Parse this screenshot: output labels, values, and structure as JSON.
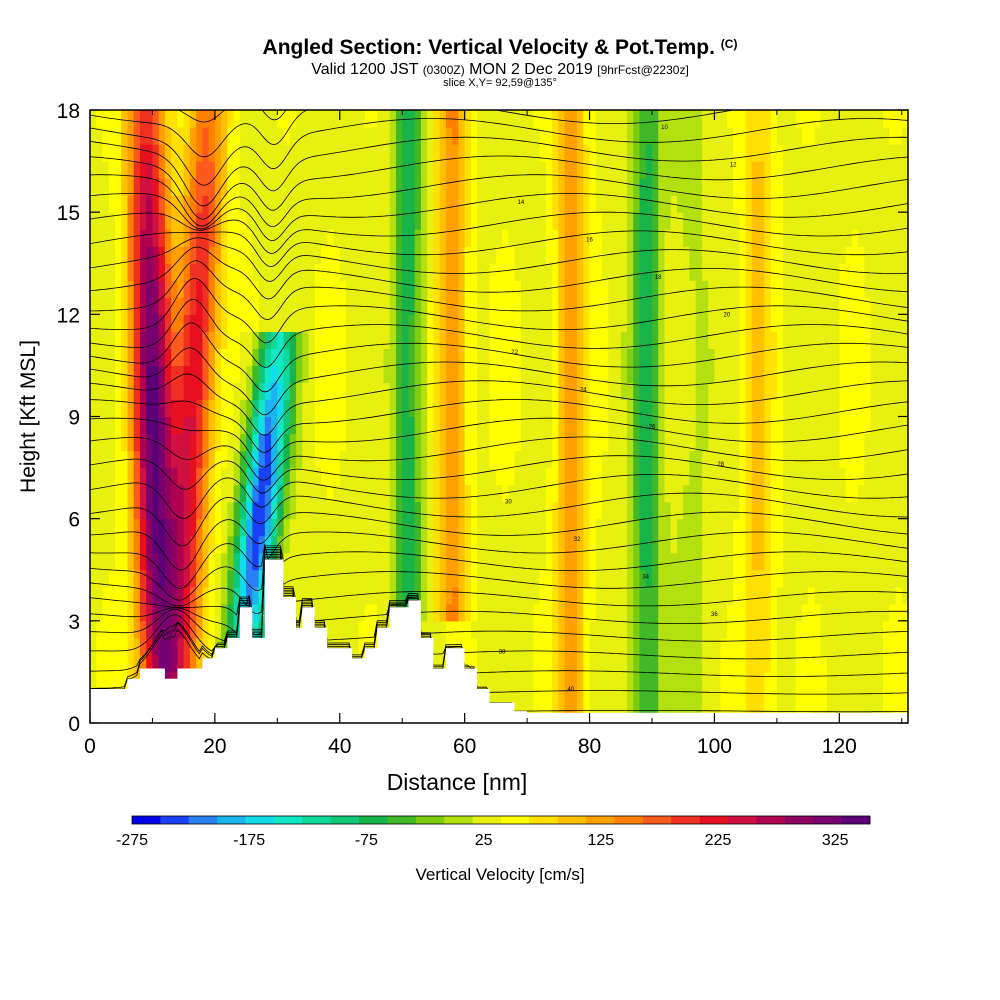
{
  "header": {
    "title": "Angled Section: Vertical Velocity & Pot.Temp.",
    "copyright": "(C)",
    "valid_a": "Valid 1200 JST",
    "valid_z": "(0300Z)",
    "valid_b": "MON 2 Dec 2019",
    "forecast": "[9hrFcst@2230z]",
    "slice": "slice X,Y= 92,59@135°"
  },
  "colorbar": {
    "label": "Vertical Velocity [cm/s]",
    "ticks": [
      "-275",
      "-175",
      "-75",
      "25",
      "125",
      "225",
      "325"
    ],
    "colors": [
      "#0000e8",
      "#1a40f5",
      "#2a80f2",
      "#1ab4ee",
      "#10dcea",
      "#10e8c8",
      "#10d89a",
      "#10c878",
      "#18b44a",
      "#40b828",
      "#7ccc10",
      "#b4e010",
      "#e8f010",
      "#ffff00",
      "#ffe000",
      "#ffc000",
      "#ffa000",
      "#ff8000",
      "#ff5a1e",
      "#f03020",
      "#e81020",
      "#d01040",
      "#b00050",
      "#900060",
      "#780070",
      "#5c0078"
    ]
  },
  "chart_data": {
    "type": "heatmap",
    "xlabel": "Distance [nm]",
    "ylabel": "Height [Kft MSL]",
    "xlim": [
      0,
      131
    ],
    "ylim": [
      0,
      18
    ],
    "xticks": [
      "0",
      "20",
      "40",
      "60",
      "80",
      "100",
      "120"
    ],
    "yticks": [
      "0",
      "3",
      "6",
      "9",
      "12",
      "15",
      "18"
    ],
    "vertical_velocity_features": [
      {
        "x_base": 11,
        "x_top": 9,
        "peak": 325,
        "y_range": [
          1,
          18
        ]
      },
      {
        "x_base": 14,
        "x_top": 19,
        "peak": 230,
        "y_range": [
          1,
          18
        ]
      },
      {
        "x_base": 25,
        "x_top": 30,
        "peak": -275,
        "y_range": [
          2.5,
          11
        ]
      },
      {
        "x_base": 51,
        "x_top": 51,
        "peak": -90,
        "y_range": [
          3.5,
          18
        ]
      },
      {
        "x_base": 58,
        "x_top": 58,
        "peak": 125,
        "y_range": [
          3.5,
          18
        ]
      },
      {
        "x_base": 77,
        "x_top": 77,
        "peak": 120,
        "y_range": [
          0.5,
          18
        ]
      },
      {
        "x_base": 89,
        "x_top": 89,
        "peak": -80,
        "y_range": [
          0.5,
          18
        ]
      },
      {
        "x_base": 107,
        "x_top": 107,
        "peak": 80,
        "y_range": [
          0.5,
          18
        ]
      }
    ],
    "terrain": [
      [
        0,
        1
      ],
      [
        6,
        1
      ],
      [
        6,
        1.3
      ],
      [
        8,
        1.3
      ],
      [
        8,
        1.6
      ],
      [
        12,
        1.6
      ],
      [
        12,
        1.3
      ],
      [
        14,
        1.3
      ],
      [
        14,
        1.6
      ],
      [
        18,
        1.6
      ],
      [
        18,
        1.9
      ],
      [
        20,
        1.9
      ],
      [
        20,
        2.2
      ],
      [
        22,
        2.2
      ],
      [
        22,
        2.5
      ],
      [
        24,
        2.5
      ],
      [
        24,
        3.4
      ],
      [
        26,
        3.4
      ],
      [
        26,
        2.5
      ],
      [
        28,
        2.5
      ],
      [
        28,
        4.8
      ],
      [
        31,
        4.8
      ],
      [
        31,
        3.7
      ],
      [
        33,
        3.7
      ],
      [
        33,
        2.8
      ],
      [
        34,
        2.8
      ],
      [
        34,
        3.4
      ],
      [
        36,
        3.4
      ],
      [
        36,
        2.8
      ],
      [
        38,
        2.8
      ],
      [
        38,
        2.2
      ],
      [
        42,
        2.2
      ],
      [
        42,
        1.9
      ],
      [
        44,
        1.9
      ],
      [
        44,
        2.2
      ],
      [
        46,
        2.2
      ],
      [
        46,
        2.8
      ],
      [
        48,
        2.8
      ],
      [
        48,
        3.4
      ],
      [
        51,
        3.4
      ],
      [
        51,
        3.6
      ],
      [
        53,
        3.6
      ],
      [
        53,
        2.5
      ],
      [
        55,
        2.5
      ],
      [
        55,
        1.6
      ],
      [
        57,
        1.6
      ],
      [
        57,
        2.2
      ],
      [
        60,
        2.2
      ],
      [
        60,
        1.6
      ],
      [
        62,
        1.6
      ],
      [
        62,
        1
      ],
      [
        64,
        1
      ],
      [
        64,
        0.6
      ],
      [
        68,
        0.6
      ],
      [
        68,
        0.35
      ],
      [
        70,
        0.35
      ],
      [
        70,
        0.3
      ],
      [
        131,
        0.3
      ]
    ],
    "contour_labels": [
      "40",
      "38",
      "36",
      "34",
      "32",
      "30",
      "28",
      "26",
      "24",
      "22",
      "20",
      "18",
      "16",
      "14",
      "12",
      "10",
      "8",
      "6",
      "4",
      "2"
    ]
  }
}
